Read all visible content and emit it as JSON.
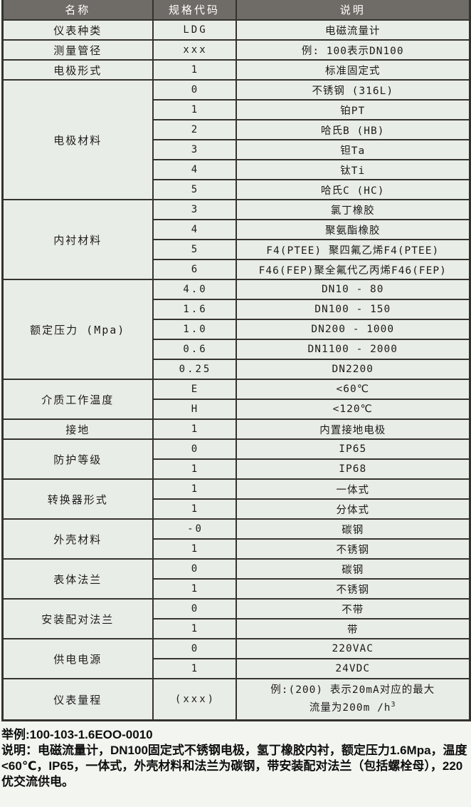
{
  "colors": {
    "header_bg": "#6f6b66",
    "header_text": "#ffffff",
    "cell_bg": "#e9ede8",
    "border": "#35332f",
    "text": "#1d1c1a"
  },
  "table": {
    "headers": [
      "名称",
      "规格代码",
      "说明"
    ],
    "sections": [
      {
        "name": "仪表种类",
        "rows": [
          {
            "code": "LDG",
            "desc": "电磁流量计"
          }
        ]
      },
      {
        "name": "测量管径",
        "rows": [
          {
            "code": "xxx",
            "desc": "例: 100表示DN100"
          }
        ]
      },
      {
        "name": "电极形式",
        "rows": [
          {
            "code": "1",
            "desc": "标准固定式"
          }
        ]
      },
      {
        "name": "电极材料",
        "rows": [
          {
            "code": "0",
            "desc": "不锈钢 (316L)"
          },
          {
            "code": "1",
            "desc": "铂PT"
          },
          {
            "code": "2",
            "desc": "哈氏B (HB)"
          },
          {
            "code": "3",
            "desc": "钽Ta"
          },
          {
            "code": "4",
            "desc": "钛Ti"
          },
          {
            "code": "5",
            "desc": "哈氏C (HC)"
          }
        ]
      },
      {
        "name": "内衬材料",
        "rows": [
          {
            "code": "3",
            "desc": "氯丁橡胶"
          },
          {
            "code": "4",
            "desc": "聚氨酯橡胶"
          },
          {
            "code": "5",
            "desc": "F4(PTEE) 聚四氟乙烯F4(PTEE)"
          },
          {
            "code": "6",
            "desc": "F46(FEP)聚全氟代乙丙烯F46(FEP)"
          }
        ]
      },
      {
        "name": "额定压力 (Mpa)",
        "rows": [
          {
            "code": "4.0",
            "desc": "DN10 - 80"
          },
          {
            "code": "1.6",
            "desc": "DN100 - 150"
          },
          {
            "code": "1.0",
            "desc": "DN200 - 1000"
          },
          {
            "code": "0.6",
            "desc": "DN1100 - 2000"
          },
          {
            "code": "0.25",
            "desc": "DN2200"
          }
        ]
      },
      {
        "name": "介质工作温度",
        "rows": [
          {
            "code": "E",
            "desc": "<60℃"
          },
          {
            "code": "H",
            "desc": "<120℃"
          }
        ]
      },
      {
        "name": "接地",
        "rows": [
          {
            "code": "1",
            "desc": "内置接地电极"
          }
        ]
      },
      {
        "name": "防护等级",
        "rows": [
          {
            "code": "0",
            "desc": "IP65"
          },
          {
            "code": "1",
            "desc": "IP68"
          }
        ]
      },
      {
        "name": "转换器形式",
        "rows": [
          {
            "code": "1",
            "desc": "一体式"
          },
          {
            "code": "1",
            "desc": "分体式"
          }
        ]
      },
      {
        "name": "外壳材料",
        "rows": [
          {
            "code": "-0",
            "desc": "碳钢"
          },
          {
            "code": "1",
            "desc": "不锈钢"
          }
        ]
      },
      {
        "name": "表体法兰",
        "rows": [
          {
            "code": "0",
            "desc": "碳钢"
          },
          {
            "code": "1",
            "desc": "不锈钢"
          }
        ]
      },
      {
        "name": "安装配对法兰",
        "rows": [
          {
            "code": "0",
            "desc": "不带"
          },
          {
            "code": "1",
            "desc": "带"
          }
        ]
      },
      {
        "name": "供电电源",
        "rows": [
          {
            "code": "0",
            "desc": "220VAC"
          },
          {
            "code": "1",
            "desc": "24VDC"
          }
        ]
      },
      {
        "name": "仪表量程",
        "rows": [
          {
            "code": "(xxx)",
            "tall": true,
            "desc_lines": [
              "例:(200) 表示20mA对应的最大",
              "流量为200m /h"
            ],
            "desc_sup": "3"
          }
        ]
      }
    ]
  },
  "footer": {
    "example": "举例:100-103-1.6EOO-0010",
    "note": "说明：电磁流量计，DN100固定式不锈钢电极，氢丁橡胶内衬，额定压力1.6Mpa，温度<60℃，IP65，一体式，外壳材料和法兰为碳钢，带安装配对法兰（包括螺栓母），220优交流供电。"
  }
}
